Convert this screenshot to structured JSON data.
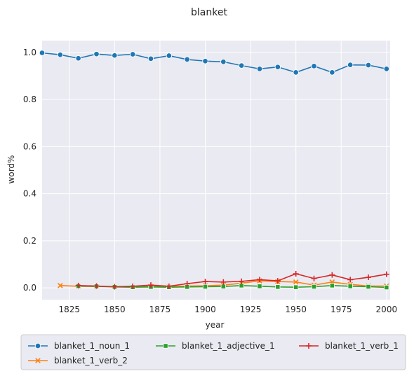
{
  "chart_data": {
    "type": "line",
    "title": "blanket",
    "xlabel": "year",
    "ylabel": "word%",
    "xlim": [
      1810,
      2002
    ],
    "ylim": [
      -0.05,
      1.05
    ],
    "x_ticks": [
      1825,
      1850,
      1875,
      1900,
      1925,
      1950,
      1975,
      2000
    ],
    "y_ticks": [
      0.0,
      0.2,
      0.4,
      0.6,
      0.8,
      1.0
    ],
    "y_tick_labels": [
      "0.0",
      "0.2",
      "0.4",
      "0.6",
      "0.8",
      "1.0"
    ],
    "grid": true,
    "legend_position": "bottom",
    "series": [
      {
        "name": "blanket_1_noun_1",
        "color": "#1f77b4",
        "marker": "circle",
        "x": [
          1810,
          1820,
          1830,
          1840,
          1850,
          1860,
          1870,
          1880,
          1890,
          1900,
          1910,
          1920,
          1930,
          1940,
          1950,
          1960,
          1970,
          1980,
          1990,
          2000
        ],
        "y": [
          0.998,
          0.99,
          0.975,
          0.993,
          0.987,
          0.992,
          0.973,
          0.986,
          0.97,
          0.963,
          0.96,
          0.944,
          0.93,
          0.938,
          0.915,
          0.942,
          0.915,
          0.947,
          0.946,
          0.93
        ]
      },
      {
        "name": "blanket_1_verb_2",
        "color": "#ff7f0e",
        "marker": "x",
        "x": [
          1820,
          1830,
          1840,
          1850,
          1860,
          1870,
          1880,
          1890,
          1900,
          1910,
          1920,
          1930,
          1940,
          1950,
          1960,
          1970,
          1980,
          1990,
          2000
        ],
        "y": [
          0.01,
          0.007,
          0.006,
          0.005,
          0.004,
          0.006,
          0.005,
          0.008,
          0.009,
          0.012,
          0.02,
          0.03,
          0.027,
          0.025,
          0.012,
          0.025,
          0.015,
          0.008,
          0.008
        ]
      },
      {
        "name": "blanket_1_adjective_1",
        "color": "#2ca02c",
        "marker": "square",
        "x": [
          1830,
          1840,
          1850,
          1860,
          1870,
          1880,
          1890,
          1900,
          1910,
          1920,
          1930,
          1940,
          1950,
          1960,
          1970,
          1980,
          1990,
          2000
        ],
        "y": [
          0.008,
          0.007,
          0.004,
          0.003,
          0.004,
          0.003,
          0.004,
          0.005,
          0.006,
          0.01,
          0.007,
          0.004,
          0.003,
          0.005,
          0.01,
          0.007,
          0.005,
          0.002
        ]
      },
      {
        "name": "blanket_1_verb_1",
        "color": "#d62728",
        "marker": "plus",
        "x": [
          1830,
          1840,
          1850,
          1860,
          1870,
          1880,
          1890,
          1900,
          1910,
          1920,
          1930,
          1940,
          1950,
          1960,
          1970,
          1980,
          1990,
          2000
        ],
        "y": [
          0.01,
          0.008,
          0.005,
          0.007,
          0.012,
          0.007,
          0.018,
          0.027,
          0.025,
          0.028,
          0.035,
          0.03,
          0.06,
          0.04,
          0.055,
          0.035,
          0.045,
          0.058
        ]
      }
    ]
  }
}
